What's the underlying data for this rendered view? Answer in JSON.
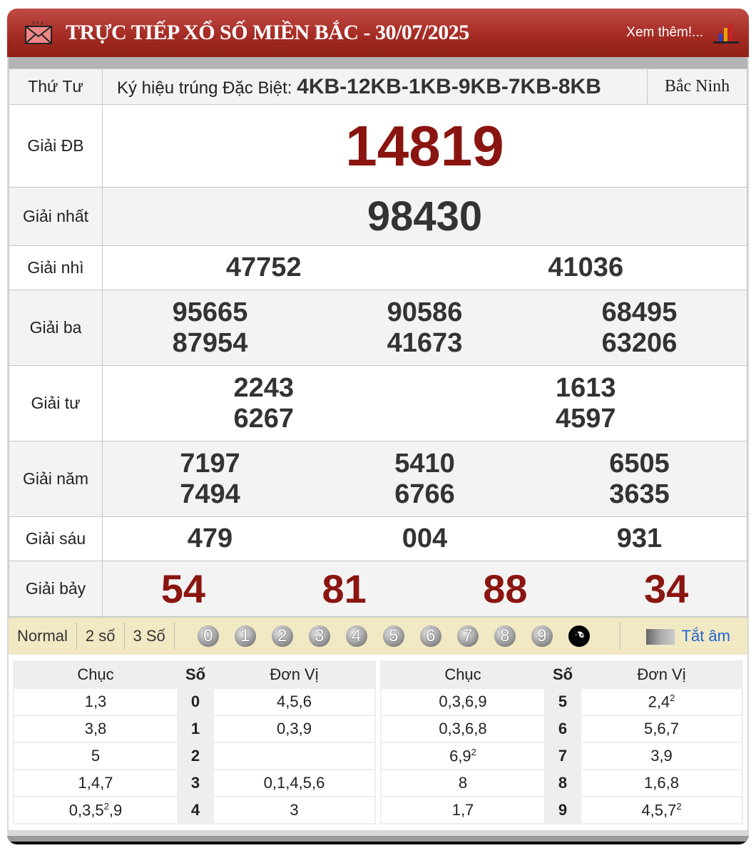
{
  "header": {
    "title": "TRỰC TIẾP XỔ SỐ MIỀN BẮC - 30/07/2025",
    "more": "Xem thêm!...",
    "icon": "mail-icon",
    "chart_icon": "bar-chart-icon"
  },
  "info": {
    "day": "Thứ Tư",
    "ky_label": "Ký hiệu trúng Đặc Biệt:",
    "ky_value": "4KB-12KB-1KB-9KB-7KB-8KB",
    "province": "Bắc Ninh"
  },
  "prizes": [
    {
      "label": "Giải ĐB",
      "numbers": [
        "14819"
      ]
    },
    {
      "label": "Giải nhất",
      "numbers": [
        "98430"
      ]
    },
    {
      "label": "Giải nhì",
      "numbers": [
        "47752",
        "41036"
      ]
    },
    {
      "label": "Giải ba",
      "numbers": [
        "95665",
        "90586",
        "68495",
        "87954",
        "41673",
        "63206"
      ]
    },
    {
      "label": "Giải tư",
      "numbers": [
        "2243",
        "1613",
        "6267",
        "4597"
      ]
    },
    {
      "label": "Giải năm",
      "numbers": [
        "7197",
        "5410",
        "6505",
        "7494",
        "6766",
        "3635"
      ]
    },
    {
      "label": "Giải sáu",
      "numbers": [
        "479",
        "004",
        "931"
      ]
    },
    {
      "label": "Giải bảy",
      "numbers": [
        "54",
        "81",
        "88",
        "34"
      ]
    }
  ],
  "toolbar": {
    "modes": [
      "Normal",
      "2 số",
      "3 Số"
    ],
    "digits": [
      "0",
      "1",
      "2",
      "3",
      "4",
      "5",
      "6",
      "7",
      "8",
      "9"
    ],
    "mute": "Tắt âm"
  },
  "loto": {
    "headers": [
      "Chục",
      "Số",
      "Đơn Vị"
    ],
    "rows": [
      {
        "chuc": {
          "a": "1,3"
        },
        "so": "0",
        "dv": {
          "a": "4,5,6"
        }
      },
      {
        "chuc": {
          "a": "3,8"
        },
        "so": "1",
        "dv": {
          "a": "0,3,9"
        }
      },
      {
        "chuc": {
          "a": "5"
        },
        "so": "2",
        "dv": {
          "a": ""
        }
      },
      {
        "chuc": {
          "a": "1,4,7"
        },
        "so": "3",
        "dv": {
          "a": "0,1,4,5,6"
        }
      },
      {
        "chuc": {
          "a": "0,3,5",
          "sup": "2",
          "b": ",9"
        },
        "so": "4",
        "dv": {
          "a": "3"
        }
      },
      {
        "chuc": {
          "a": "0,3,6,9"
        },
        "so": "5",
        "dv": {
          "a": "2,4",
          "sup": "2"
        }
      },
      {
        "chuc": {
          "a": "0,3,6,8"
        },
        "so": "6",
        "dv": {
          "a": "5,6,7"
        }
      },
      {
        "chuc": {
          "a": "6,9",
          "sup": "2"
        },
        "so": "7",
        "dv": {
          "a": "3,9"
        }
      },
      {
        "chuc": {
          "a": "8"
        },
        "so": "8",
        "dv": {
          "a": "1,6,8"
        }
      },
      {
        "chuc": {
          "a": "1,7"
        },
        "so": "9",
        "dv": {
          "a": "4,5,7",
          "sup": "2"
        }
      }
    ]
  }
}
